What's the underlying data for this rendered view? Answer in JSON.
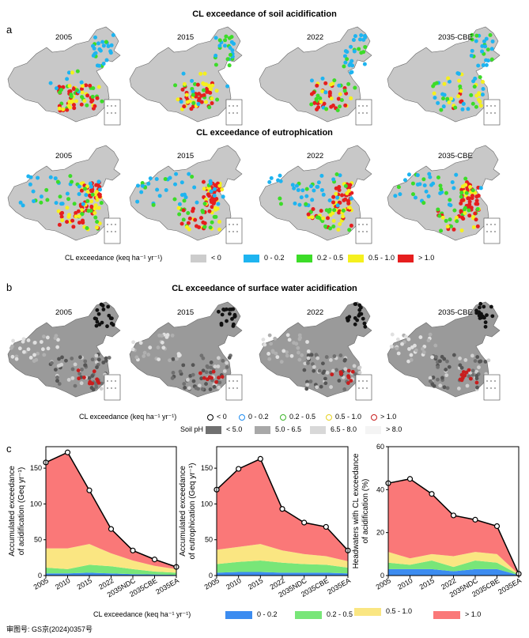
{
  "panel_a": {
    "label": "a",
    "title_soil": "CL exceedance of soil acidification",
    "title_eutro": "CL exceedance of eutrophication",
    "years": [
      "2005",
      "2015",
      "2022",
      "2035-CBE"
    ],
    "legend_title": "CL exceedance",
    "legend_unit": "(keq ha⁻¹ yr⁻¹)",
    "legend_items": [
      {
        "label": "< 0",
        "color": "#cccccc"
      },
      {
        "label": "0 - 0.2",
        "color": "#1eb4f0"
      },
      {
        "label": "0.2 - 0.5",
        "color": "#3cdc28"
      },
      {
        "label": "0.5 - 1.0",
        "color": "#f5f01e"
      },
      {
        "label": "> 1.0",
        "color": "#e61e1e"
      }
    ]
  },
  "panel_b": {
    "label": "b",
    "title": "CL exceedance of surface water acidification",
    "years": [
      "2005",
      "2015",
      "2022",
      "2035-CBE"
    ],
    "legend_title": "CL exceedance",
    "legend_unit": "(keq ha⁻¹ yr⁻¹)",
    "legend_items": [
      {
        "label": "< 0",
        "color": "#000000"
      },
      {
        "label": "0 - 0.2",
        "color": "#1e8cf0"
      },
      {
        "label": "0.2 - 0.5",
        "color": "#3cb428"
      },
      {
        "label": "0.5 - 1.0",
        "color": "#e6d21e"
      },
      {
        "label": "> 1.0",
        "color": "#c81e1e"
      }
    ],
    "ph_title": "Soil pH",
    "ph_items": [
      {
        "label": "< 5.0",
        "color": "#707070"
      },
      {
        "label": "5.0 - 6.5",
        "color": "#a8a8a8"
      },
      {
        "label": "6.5 - 8.0",
        "color": "#d8d8d8"
      },
      {
        "label": "> 8.0",
        "color": "#f4f4f4"
      }
    ]
  },
  "panel_c": {
    "label": "c",
    "legend_title": "CL exceedance",
    "legend_unit": "(keq ha⁻¹ yr⁻¹)",
    "legend_items": [
      {
        "label": "0 - 0.2",
        "color": "#3c8cf0"
      },
      {
        "label": "0.2 - 0.5",
        "color": "#78e678"
      },
      {
        "label": "0.5 - 1.0",
        "color": "#fae682"
      },
      {
        "label": "> 1.0",
        "color": "#fa7878"
      }
    ]
  },
  "footer": {
    "text": "审图号: GS京(2024)0357号"
  },
  "chart_data": [
    {
      "type": "area",
      "x": [
        "2005",
        "2010",
        "2015",
        "2022",
        "2035NDC",
        "2035CBE",
        "2035EA"
      ],
      "ylabel": "Accumulated exceedance of acidification  (Geq yr⁻¹)",
      "ylim": [
        0,
        180
      ],
      "yticks": [
        0,
        50,
        100,
        150
      ],
      "stacked": true,
      "series": [
        {
          "name": "0 - 0.2",
          "values": [
            3,
            3,
            4,
            3,
            2,
            1.5,
            1
          ]
        },
        {
          "name": "0.2 - 0.5",
          "values": [
            8,
            6,
            11,
            10,
            7,
            4,
            3
          ]
        },
        {
          "name": "0.5 - 1.0",
          "values": [
            27,
            29,
            29,
            18,
            12,
            8,
            5
          ]
        },
        {
          "name": "> 1.0",
          "values": [
            120,
            134,
            75,
            34,
            14,
            9,
            3
          ]
        }
      ],
      "totals": [
        158,
        172,
        119,
        65,
        35,
        22.5,
        12
      ]
    },
    {
      "type": "area",
      "x": [
        "2005",
        "2010",
        "2015",
        "2022",
        "2035NDC",
        "2035CBE",
        "2035EA"
      ],
      "ylabel": "Accumulated exceedance of eutrophication  (Geq yr⁻¹)",
      "ylim": [
        0,
        180
      ],
      "yticks": [
        0,
        50,
        100,
        150
      ],
      "stacked": true,
      "series": [
        {
          "name": "0 - 0.2",
          "values": [
            4,
            5,
            5,
            4,
            4,
            4,
            3
          ]
        },
        {
          "name": "0.2 - 0.5",
          "values": [
            12,
            14,
            16,
            14,
            12,
            11,
            8
          ]
        },
        {
          "name": "0.5 - 1.0",
          "values": [
            20,
            21,
            23,
            17,
            14,
            12,
            9
          ]
        },
        {
          "name": "> 1.0",
          "values": [
            84,
            109,
            119,
            58,
            44,
            41,
            15
          ]
        }
      ],
      "totals": [
        120,
        149,
        163,
        93,
        74,
        68,
        35
      ]
    },
    {
      "type": "area",
      "x": [
        "2005",
        "2010",
        "2015",
        "2022",
        "2035NDC",
        "2035CBE",
        "2035EA"
      ],
      "ylabel": "Headwaters with CL exceedance of acidification (%)",
      "ylim": [
        0,
        60
      ],
      "yticks": [
        0,
        20,
        40,
        60
      ],
      "stacked": true,
      "series": [
        {
          "name": "0 - 0.2",
          "values": [
            3,
            3,
            3,
            2,
            3,
            3,
            0.2
          ]
        },
        {
          "name": "0.2 - 0.5",
          "values": [
            3,
            2,
            4,
            2,
            4,
            3,
            0.2
          ]
        },
        {
          "name": "0.5 - 1.0",
          "values": [
            5,
            3,
            3,
            5,
            4,
            4,
            0.2
          ]
        },
        {
          "name": "> 1.0",
          "values": [
            32,
            37,
            28,
            19,
            15,
            13,
            0.2
          ]
        }
      ],
      "totals": [
        43,
        45,
        38,
        28,
        26,
        23,
        0.8
      ]
    }
  ]
}
